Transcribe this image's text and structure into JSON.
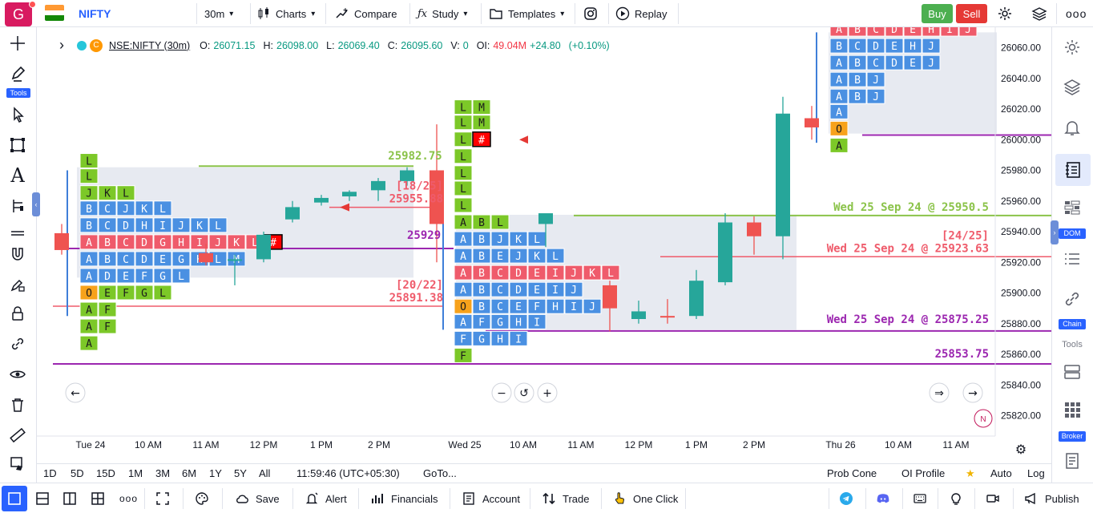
{
  "topbar": {
    "logo_letter": "G",
    "symbol": "NIFTY",
    "interval": "30m",
    "charts_label": "Charts",
    "compare_label": "Compare",
    "study_label": "Study",
    "templates_label": "Templates",
    "replay_label": "Replay",
    "buy_label": "Buy",
    "sell_label": "Sell",
    "flag_colors": [
      "#ff9933",
      "#ffffff",
      "#138808"
    ]
  },
  "left_toolbar": {
    "tools_badge": "Tools"
  },
  "right_toolbar": {
    "dom_badge": "DOM",
    "chain_badge": "Chain",
    "tools_label": "Tools",
    "broker_badge": "Broker"
  },
  "legend": {
    "symbol": "NSE:NIFTY (30m)",
    "o_label": "O:",
    "o": "26071.15",
    "h_label": "H:",
    "h": "26098.00",
    "l_label": "L:",
    "l": "26069.40",
    "c_label": "C:",
    "c": "26095.60",
    "v_label": "V:",
    "v": "0",
    "oi_label": "OI:",
    "oi": "49.04M",
    "change": "+24.80",
    "change_pct": "(+0.10%)"
  },
  "colors": {
    "up": "#26a69a",
    "down": "#ef5350",
    "tpo_blue": "#4a90e2",
    "tpo_green": "#7cc828",
    "tpo_red": "#ef5b6b",
    "tpo_orange": "#f7a21b",
    "poc": "#ff0000",
    "green_line": "#8bc34a",
    "red_line": "#ef5b6b",
    "purple_line": "#9c27b0"
  },
  "chart_data": {
    "type": "candlestick-tpo",
    "y_axis": {
      "min": 25810,
      "max": 26070,
      "ticks": [
        26060,
        26040,
        26020,
        26000,
        25980,
        25960,
        25940,
        25920,
        25900,
        25880,
        25860,
        25840,
        25820
      ]
    },
    "x_ticks": [
      "Tue 24",
      "10 AM",
      "11 AM",
      "12 PM",
      "1 PM",
      "2 PM",
      "Wed 25",
      "10 AM",
      "11 AM",
      "12 PM",
      "1 PM",
      "2 PM",
      "Thu 26",
      "10 AM",
      "11 AM"
    ],
    "candles": [
      {
        "o": 25939,
        "h": 25945,
        "l": 25925,
        "c": 25928
      },
      {
        "o": 25926,
        "h": 25932,
        "l": 25918,
        "c": 25920
      },
      {
        "o": 25922,
        "h": 25925,
        "l": 25905,
        "c": 25922
      },
      {
        "o": 25922,
        "h": 25940,
        "l": 25920,
        "c": 25938
      },
      {
        "o": 25948,
        "h": 25960,
        "l": 25946,
        "c": 25956
      },
      {
        "o": 25959,
        "h": 25964,
        "l": 25957,
        "c": 25962
      },
      {
        "o": 25963,
        "h": 25967,
        "l": 25960,
        "c": 25966
      },
      {
        "o": 25967,
        "h": 25975,
        "l": 25960,
        "c": 25973
      },
      {
        "o": 25973,
        "h": 25982,
        "l": 25970,
        "c": 25980
      },
      {
        "o": 25980,
        "h": 26010,
        "l": 25920,
        "c": 25945
      },
      {
        "o": 25945,
        "h": 25950,
        "l": 25930,
        "c": 25952
      },
      {
        "o": 25905,
        "h": 25908,
        "l": 25875,
        "c": 25890
      },
      {
        "o": 25883,
        "h": 25895,
        "l": 25880,
        "c": 25888
      },
      {
        "o": 25885,
        "h": 25896,
        "l": 25880,
        "c": 25884
      },
      {
        "o": 25885,
        "h": 25915,
        "l": 25883,
        "c": 25908
      },
      {
        "o": 25907,
        "h": 25952,
        "l": 25905,
        "c": 25946
      },
      {
        "o": 25946,
        "h": 25950,
        "l": 25925,
        "c": 25937
      },
      {
        "o": 25937,
        "h": 26028,
        "l": 25922,
        "c": 26017
      },
      {
        "o": 26014,
        "h": 26022,
        "l": 26000,
        "c": 26008
      }
    ],
    "levels": [
      {
        "price": 25982.75,
        "label": "25982.75",
        "kind": "green"
      },
      {
        "price": 25950.5,
        "label": "Wed 25 Sep 24 @ 25950.5",
        "kind": "green"
      },
      {
        "price": 25923.63,
        "label": "Wed 25 Sep 24 @ 25923.63",
        "kind": "red",
        "note": "[24/25]"
      },
      {
        "price": 25875.25,
        "label": "Wed 25 Sep 24 @ 25875.25",
        "kind": "purple"
      },
      {
        "price": 25853.75,
        "label": "25853.75",
        "kind": "purple"
      },
      {
        "price": 25929,
        "label": "25929",
        "kind": "purple"
      },
      {
        "price": 25891.38,
        "label": "25891.38",
        "kind": "red",
        "note": "[20/22]"
      },
      {
        "price": 25955.88,
        "label": "25955.88",
        "kind": "red",
        "note": "[18/25]"
      }
    ],
    "tpo_profiles": [
      {
        "day": "Tue 24",
        "rows": [
          {
            "price": 25986,
            "letters": [
              [
                "L",
                "g"
              ]
            ]
          },
          {
            "price": 25976,
            "letters": [
              [
                "L",
                "g"
              ]
            ]
          },
          {
            "price": 25965,
            "letters": [
              [
                "J",
                "g"
              ],
              [
                "K",
                "g"
              ],
              [
                "L",
                "g"
              ]
            ]
          },
          {
            "price": 25955,
            "letters": [
              [
                "B",
                "b"
              ],
              [
                "C",
                "b"
              ],
              [
                "J",
                "b"
              ],
              [
                "K",
                "b"
              ],
              [
                "L",
                "b"
              ]
            ]
          },
          {
            "price": 25944,
            "letters": [
              [
                "B",
                "b"
              ],
              [
                "C",
                "b"
              ],
              [
                "D",
                "b"
              ],
              [
                "H",
                "b"
              ],
              [
                "I",
                "b"
              ],
              [
                "J",
                "b"
              ],
              [
                "K",
                "b"
              ],
              [
                "L",
                "b"
              ]
            ]
          },
          {
            "price": 25933,
            "letters": [
              [
                "A",
                "r"
              ],
              [
                "B",
                "r"
              ],
              [
                "C",
                "r"
              ],
              [
                "D",
                "r"
              ],
              [
                "G",
                "r"
              ],
              [
                "H",
                "r"
              ],
              [
                "I",
                "r"
              ],
              [
                "J",
                "r"
              ],
              [
                "K",
                "r"
              ],
              [
                "L",
                "r"
              ],
              [
                "#",
                "p"
              ]
            ]
          },
          {
            "price": 25922,
            "letters": [
              [
                "A",
                "b"
              ],
              [
                "B",
                "b"
              ],
              [
                "C",
                "b"
              ],
              [
                "D",
                "b"
              ],
              [
                "E",
                "b"
              ],
              [
                "G",
                "b"
              ],
              [
                "H",
                "b"
              ],
              [
                "L",
                "b"
              ],
              [
                "M",
                "b"
              ]
            ]
          },
          {
            "price": 25911,
            "letters": [
              [
                "A",
                "b"
              ],
              [
                "D",
                "b"
              ],
              [
                "E",
                "b"
              ],
              [
                "F",
                "b"
              ],
              [
                "G",
                "b"
              ],
              [
                "L",
                "b"
              ]
            ]
          },
          {
            "price": 25900,
            "letters": [
              [
                "O",
                "o"
              ],
              [
                "E",
                "g"
              ],
              [
                "F",
                "g"
              ],
              [
                "G",
                "g"
              ],
              [
                "L",
                "g"
              ]
            ]
          },
          {
            "price": 25889,
            "letters": [
              [
                "A",
                "g"
              ],
              [
                "F",
                "g"
              ]
            ]
          },
          {
            "price": 25878,
            "letters": [
              [
                "A",
                "g"
              ],
              [
                "F",
                "g"
              ]
            ]
          },
          {
            "price": 25867,
            "letters": [
              [
                "A",
                "g"
              ]
            ]
          }
        ]
      },
      {
        "day": "Wed 25",
        "rows": [
          {
            "price": 26021,
            "letters": [
              [
                "L",
                "g"
              ],
              [
                "M",
                "g"
              ]
            ]
          },
          {
            "price": 26011,
            "letters": [
              [
                "L",
                "g"
              ],
              [
                "M",
                "g"
              ]
            ]
          },
          {
            "price": 26000,
            "letters": [
              [
                "L",
                "g"
              ],
              [
                "#",
                "p"
              ]
            ]
          },
          {
            "price": 25989,
            "letters": [
              [
                "L",
                "g"
              ]
            ]
          },
          {
            "price": 25978,
            "letters": [
              [
                "L",
                "g"
              ]
            ]
          },
          {
            "price": 25968,
            "letters": [
              [
                "L",
                "g"
              ]
            ]
          },
          {
            "price": 25957,
            "letters": [
              [
                "L",
                "g"
              ]
            ]
          },
          {
            "price": 25946,
            "letters": [
              [
                "A",
                "g"
              ],
              [
                "B",
                "g"
              ],
              [
                "L",
                "g"
              ]
            ]
          },
          {
            "price": 25935,
            "letters": [
              [
                "A",
                "b"
              ],
              [
                "B",
                "b"
              ],
              [
                "J",
                "b"
              ],
              [
                "K",
                "b"
              ],
              [
                "L",
                "b"
              ]
            ]
          },
          {
            "price": 25924,
            "letters": [
              [
                "A",
                "b"
              ],
              [
                "B",
                "b"
              ],
              [
                "E",
                "b"
              ],
              [
                "J",
                "b"
              ],
              [
                "K",
                "b"
              ],
              [
                "L",
                "b"
              ]
            ]
          },
          {
            "price": 25913,
            "letters": [
              [
                "A",
                "r"
              ],
              [
                "B",
                "r"
              ],
              [
                "C",
                "r"
              ],
              [
                "D",
                "r"
              ],
              [
                "E",
                "r"
              ],
              [
                "I",
                "r"
              ],
              [
                "J",
                "r"
              ],
              [
                "K",
                "r"
              ],
              [
                "L",
                "r"
              ]
            ]
          },
          {
            "price": 25902,
            "letters": [
              [
                "A",
                "b"
              ],
              [
                "B",
                "b"
              ],
              [
                "C",
                "b"
              ],
              [
                "D",
                "b"
              ],
              [
                "E",
                "b"
              ],
              [
                "I",
                "b"
              ],
              [
                "J",
                "b"
              ]
            ]
          },
          {
            "price": 25891,
            "letters": [
              [
                "O",
                "o"
              ],
              [
                "B",
                "b"
              ],
              [
                "C",
                "b"
              ],
              [
                "E",
                "b"
              ],
              [
                "F",
                "b"
              ],
              [
                "H",
                "b"
              ],
              [
                "I",
                "b"
              ],
              [
                "J",
                "b"
              ]
            ]
          },
          {
            "price": 25881,
            "letters": [
              [
                "A",
                "b"
              ],
              [
                "F",
                "b"
              ],
              [
                "G",
                "b"
              ],
              [
                "H",
                "b"
              ],
              [
                "I",
                "b"
              ]
            ]
          },
          {
            "price": 25870,
            "letters": [
              [
                "F",
                "b"
              ],
              [
                "G",
                "b"
              ],
              [
                "H",
                "b"
              ],
              [
                "I",
                "b"
              ]
            ]
          },
          {
            "price": 25859,
            "letters": [
              [
                "F",
                "g"
              ]
            ]
          }
        ]
      },
      {
        "day": "Thu 26",
        "rows": [
          {
            "price": 26072,
            "letters": [
              [
                "A",
                "r"
              ],
              [
                "B",
                "r"
              ],
              [
                "C",
                "r"
              ],
              [
                "D",
                "r"
              ],
              [
                "E",
                "r"
              ],
              [
                "H",
                "r"
              ],
              [
                "I",
                "r"
              ],
              [
                "J",
                "r"
              ]
            ]
          },
          {
            "price": 26061,
            "letters": [
              [
                "B",
                "b"
              ],
              [
                "C",
                "b"
              ],
              [
                "D",
                "b"
              ],
              [
                "E",
                "b"
              ],
              [
                "H",
                "b"
              ],
              [
                "J",
                "b"
              ]
            ]
          },
          {
            "price": 26050,
            "letters": [
              [
                "A",
                "b"
              ],
              [
                "B",
                "b"
              ],
              [
                "C",
                "b"
              ],
              [
                "D",
                "b"
              ],
              [
                "E",
                "b"
              ],
              [
                "J",
                "b"
              ]
            ]
          },
          {
            "price": 26039,
            "letters": [
              [
                "A",
                "b"
              ],
              [
                "B",
                "b"
              ],
              [
                "J",
                "b"
              ]
            ]
          },
          {
            "price": 26028,
            "letters": [
              [
                "A",
                "b"
              ],
              [
                "B",
                "b"
              ],
              [
                "J",
                "b"
              ]
            ]
          },
          {
            "price": 26018,
            "letters": [
              [
                "A",
                "b"
              ]
            ]
          },
          {
            "price": 26007,
            "letters": [
              [
                "O",
                "o"
              ]
            ]
          },
          {
            "price": 25996,
            "letters": [
              [
                "A",
                "g"
              ]
            ]
          }
        ]
      }
    ]
  },
  "range_bar": {
    "ranges": [
      "1D",
      "5D",
      "15D",
      "1M",
      "3M",
      "6M",
      "1Y",
      "5Y",
      "All"
    ],
    "time": "11:59:46 (UTC+05:30)",
    "goto": "GoTo...",
    "prob_cone": "Prob Cone",
    "oi_profile": "OI Profile",
    "auto": "Auto",
    "log": "Log"
  },
  "bottom_bar": {
    "save": "Save",
    "alert": "Alert",
    "financials": "Financials",
    "account": "Account",
    "trade": "Trade",
    "one_click": "One Click",
    "publish": "Publish"
  }
}
